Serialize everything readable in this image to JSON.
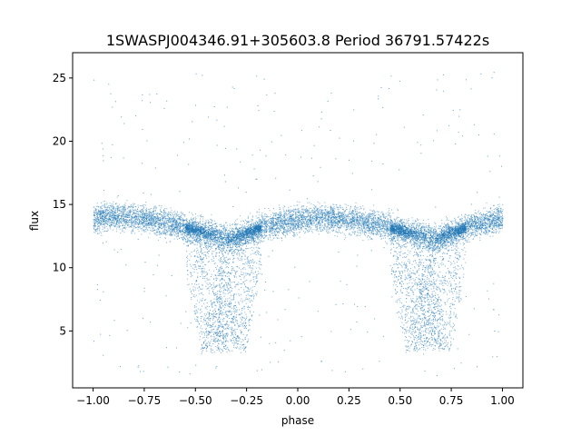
{
  "chart_data": {
    "type": "scatter",
    "title": "1SWASPJ004346.91+305603.8 Period 36791.57422s",
    "xlabel": "phase",
    "ylabel": "flux",
    "xlim": [
      -1.1,
      1.1
    ],
    "ylim": [
      0.5,
      27
    ],
    "x_ticks": [
      -1.0,
      -0.75,
      -0.5,
      -0.25,
      0.0,
      0.25,
      0.5,
      0.75,
      1.0
    ],
    "x_tick_labels": [
      "−1.00",
      "−0.75",
      "−0.50",
      "−0.25",
      "0.00",
      "0.25",
      "0.50",
      "0.75",
      "1.00"
    ],
    "y_ticks": [
      5,
      10,
      15,
      20,
      25
    ],
    "y_tick_labels": [
      "5",
      "10",
      "15",
      "20",
      "25"
    ],
    "grid": false,
    "legend": "none",
    "point_color": "#1f77b4",
    "series": [
      {
        "description_points": "phase-folded light curve, ~14 flux baseline with primary dips to ~3.5",
        "phase_profile": [
          {
            "x": -1.0,
            "y": 13.9
          },
          {
            "x": -0.9,
            "y": 14.1
          },
          {
            "x": -0.8,
            "y": 14.0
          },
          {
            "x": -0.7,
            "y": 13.7
          },
          {
            "x": -0.6,
            "y": 13.4
          },
          {
            "x": -0.5,
            "y": 13.0
          },
          {
            "x": -0.4,
            "y": 12.6
          },
          {
            "x": -0.33,
            "y": 12.3
          },
          {
            "x": -0.25,
            "y": 12.8
          },
          {
            "x": -0.15,
            "y": 13.4
          },
          {
            "x": 0.0,
            "y": 13.8
          },
          {
            "x": 0.1,
            "y": 14.0
          },
          {
            "x": 0.2,
            "y": 13.9
          },
          {
            "x": 0.3,
            "y": 13.7
          },
          {
            "x": 0.4,
            "y": 13.4
          },
          {
            "x": 0.5,
            "y": 13.0
          },
          {
            "x": 0.6,
            "y": 12.6
          },
          {
            "x": 0.67,
            "y": 12.3
          },
          {
            "x": 0.75,
            "y": 12.8
          },
          {
            "x": 0.85,
            "y": 13.4
          },
          {
            "x": 1.0,
            "y": 13.9
          }
        ],
        "dip_floor": 3.5,
        "dip_phase_ranges": [
          [
            -0.55,
            -0.18
          ],
          [
            0.45,
            0.82
          ]
        ]
      }
    ]
  }
}
